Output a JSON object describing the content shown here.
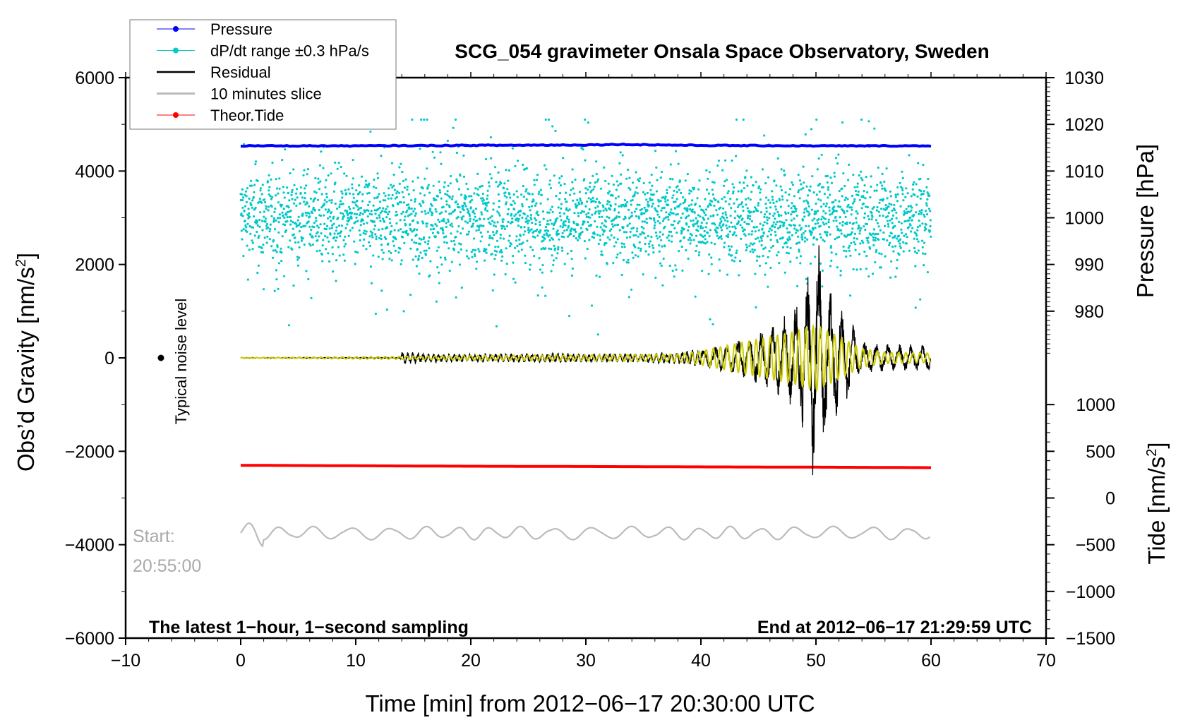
{
  "chart_data": {
    "type": "line",
    "title": "SCG_054 gravimeter Onsala Space Observatory, Sweden",
    "xlabel": "Time [min] from 2012−06−17 20:30:00 UTC",
    "ylabel_left": "Obs’d Gravity [nm/s",
    "ylabel_left_sup": "2",
    "ylabel_left_end": "]",
    "ylabel_right_pressure": "Pressure [hPa]",
    "ylabel_right_tide": "Tide [nm/s",
    "ylabel_right_tide_sup": "2",
    "ylabel_right_tide_end": "]",
    "xlim": [
      -10,
      70
    ],
    "ylim": [
      -6000,
      6000
    ],
    "x_ticks": [
      "−10",
      "0",
      "10",
      "20",
      "30",
      "40",
      "50",
      "60",
      "70"
    ],
    "x_tick_values": [
      -10,
      0,
      10,
      20,
      30,
      40,
      50,
      60,
      70
    ],
    "y_ticks": [
      "−6000",
      "−4000",
      "−2000",
      "0",
      "2000",
      "4000",
      "6000"
    ],
    "y_tick_values": [
      -6000,
      -4000,
      -2000,
      0,
      2000,
      4000,
      6000
    ],
    "pressure_ticks": [
      "980",
      "990",
      "1000",
      "1010",
      "1020",
      "1030"
    ],
    "pressure_tick_values": [
      980,
      990,
      1000,
      1010,
      1020,
      1030
    ],
    "tide_ticks": [
      "−1500",
      "−1000",
      "−500",
      "0",
      "500",
      "1000"
    ],
    "tide_tick_values": [
      -1500,
      -1000,
      -500,
      0,
      500,
      1000
    ],
    "legend": {
      "placement": "top-left",
      "entries": [
        {
          "label": "Pressure",
          "color": "#0000ff",
          "marker": true
        },
        {
          "label": "dP/dt range ±0.3 hPa/s",
          "color": "#00cccc",
          "marker": true
        },
        {
          "label": "Residual",
          "color": "#000000",
          "marker": false
        },
        {
          "label": "10 minutes slice",
          "color": "#bbbbbb",
          "marker": false
        },
        {
          "label": "Theor.Tide",
          "color": "#ff0000",
          "marker": true
        }
      ]
    },
    "annotations": {
      "noise_label": "Typical noise level",
      "start_label": "Start:",
      "start_time": "20:55:00",
      "bottom_left": "The latest 1−hour, 1−second sampling",
      "bottom_right": "End at 2012−06−17 21:29:59 UTC"
    },
    "series": [
      {
        "name": "Pressure",
        "unit": "hPa",
        "x": [
          0,
          10,
          20,
          30,
          33,
          40,
          50,
          60
        ],
        "values": [
          1015.4,
          1015.4,
          1015.5,
          1015.6,
          1015.7,
          1015.5,
          1015.4,
          1015.4
        ]
      },
      {
        "name": "dP/dt range",
        "unit": "nm/s2 (plotted)",
        "center": 3000,
        "spread": 500,
        "points_per_minute": 50
      },
      {
        "name": "Theor.Tide",
        "unit": "nm/s2",
        "x": [
          0,
          10,
          20,
          30,
          40,
          50,
          60
        ],
        "values": [
          350,
          345,
          340,
          337,
          333,
          330,
          325
        ]
      },
      {
        "name": "Residual envelope",
        "unit": "nm/s2",
        "x": [
          0,
          13.9,
          14,
          16,
          20,
          25,
          28,
          30,
          35,
          38,
          40,
          42,
          44,
          46,
          48,
          49,
          50,
          51,
          52,
          53,
          54,
          56,
          58,
          60
        ],
        "values": [
          10,
          10,
          150,
          100,
          90,
          100,
          110,
          90,
          110,
          130,
          200,
          300,
          450,
          700,
          1100,
          1700,
          2900,
          1600,
          1300,
          800,
          350,
          300,
          300,
          280
        ]
      },
      {
        "name": "Filtered residual envelope",
        "unit": "nm/s2",
        "x": [
          0,
          14,
          20,
          30,
          38,
          40,
          42,
          44,
          46,
          48,
          50,
          52,
          54,
          56,
          60
        ],
        "values": [
          5,
          30,
          50,
          60,
          80,
          150,
          250,
          350,
          450,
          550,
          700,
          450,
          200,
          120,
          100
        ]
      },
      {
        "name": "10 minutes slice",
        "unit": "nm/s2 (plotted)",
        "baseline": -3750,
        "amplitude": 120
      }
    ],
    "noise_level_value": 0
  }
}
